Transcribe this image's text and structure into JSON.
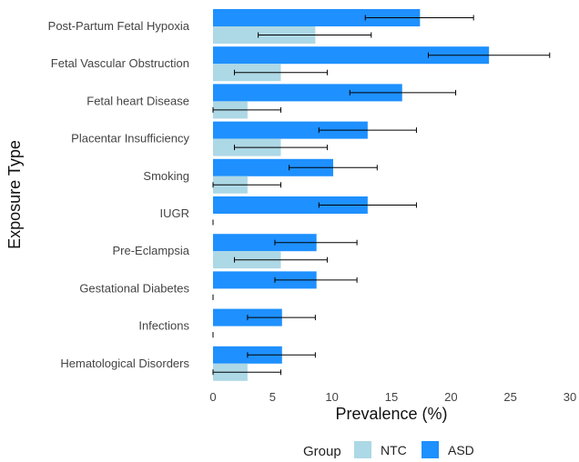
{
  "chart_data": {
    "type": "bar",
    "orientation": "horizontal",
    "categories": [
      "Post-Partum Fetal Hypoxia",
      "Fetal Vascular Obstruction",
      "Fetal heart Disease",
      "Placentar Insufficiency",
      "Smoking",
      "IUGR",
      "Pre-Eclampsia",
      "Gestational Diabetes",
      "Infections",
      "Hematological Disorders"
    ],
    "series": [
      {
        "name": "ASD",
        "color": "#1E90FF",
        "values": [
          17.4,
          23.2,
          15.9,
          13.0,
          10.1,
          13.0,
          8.7,
          8.7,
          5.8,
          5.8
        ],
        "error_low": [
          12.8,
          18.1,
          11.5,
          8.9,
          6.4,
          8.9,
          5.2,
          5.2,
          2.9,
          2.9
        ],
        "error_high": [
          21.9,
          28.3,
          20.4,
          17.1,
          13.8,
          17.1,
          12.1,
          12.1,
          8.6,
          8.6
        ]
      },
      {
        "name": "NTC",
        "color": "#ADD8E6",
        "values": [
          8.6,
          5.7,
          2.9,
          5.7,
          2.9,
          0,
          5.7,
          0,
          0,
          2.9
        ],
        "error_low": [
          3.8,
          1.8,
          0,
          1.8,
          0,
          0,
          1.8,
          0,
          0,
          0
        ],
        "error_high": [
          13.3,
          9.6,
          5.7,
          9.6,
          5.7,
          0,
          9.6,
          0,
          0,
          5.7
        ]
      }
    ],
    "xlabel": "Prevalence (%)",
    "ylabel": "Exposure Type",
    "xlim": [
      0,
      30
    ],
    "xticks": [
      0,
      5,
      10,
      15,
      20,
      25,
      30
    ],
    "grid": false,
    "legend": {
      "title": "Group",
      "position": "bottom",
      "entries": [
        {
          "label": "NTC",
          "color": "#ADD8E6"
        },
        {
          "label": "ASD",
          "color": "#1E90FF"
        }
      ]
    }
  }
}
